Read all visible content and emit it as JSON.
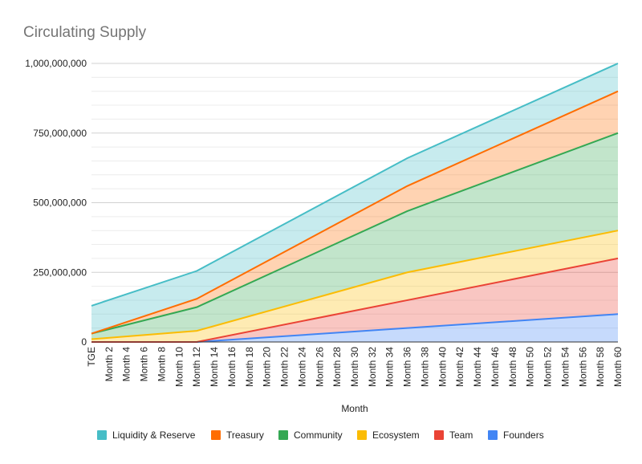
{
  "chart_data": {
    "type": "area",
    "stacked": true,
    "title": "Circulating Supply",
    "xlabel": "Month",
    "ylabel": "",
    "ylim": [
      0,
      1000000000
    ],
    "yticks": [
      "0",
      "250,000,000",
      "500,000,000",
      "750,000,000",
      "1,000,000,000"
    ],
    "ytick_values": [
      0,
      250000000,
      500000000,
      750000000,
      1000000000
    ],
    "x_tick_labels": [
      "TGE",
      "Month 2",
      "Month 4",
      "Month 6",
      "Month 8",
      "Month 10",
      "Month 12",
      "Month 14",
      "Month 16",
      "Month 18",
      "Month 20",
      "Month 22",
      "Month 24",
      "Month 26",
      "Month 28",
      "Month 30",
      "Month 32",
      "Month 34",
      "Month 36",
      "Month 38",
      "Month 40",
      "Month 42",
      "Month 44",
      "Month 46",
      "Month 48",
      "Month 50",
      "Month 52",
      "Month 54",
      "Month 56",
      "Month 58",
      "Month 60"
    ],
    "x": [
      0,
      12,
      36,
      60
    ],
    "x_note_labels": [
      "TGE",
      "Month 12",
      "Month 36",
      "Month 60"
    ],
    "grid": true,
    "legend_position": "bottom",
    "series": [
      {
        "name": "Founders",
        "color": "#4285F4",
        "cumulative": [
          0,
          0,
          50000000,
          100000000
        ]
      },
      {
        "name": "Team",
        "color": "#EA4335",
        "cumulative": [
          0,
          0,
          150000000,
          300000000
        ]
      },
      {
        "name": "Ecosystem",
        "color": "#FBBC04",
        "cumulative": [
          10000000,
          40000000,
          250000000,
          400000000
        ]
      },
      {
        "name": "Community",
        "color": "#34A853",
        "cumulative": [
          30000000,
          125000000,
          470000000,
          750000000
        ]
      },
      {
        "name": "Treasury",
        "color": "#FF6D01",
        "cumulative": [
          30000000,
          155000000,
          560000000,
          900000000
        ]
      },
      {
        "name": "Liquidity & Reserve",
        "color": "#46BDC6",
        "cumulative": [
          130000000,
          255000000,
          660000000,
          1000000000
        ]
      }
    ],
    "legend_order": [
      "Liquidity & Reserve",
      "Treasury",
      "Community",
      "Ecosystem",
      "Team",
      "Founders"
    ]
  }
}
